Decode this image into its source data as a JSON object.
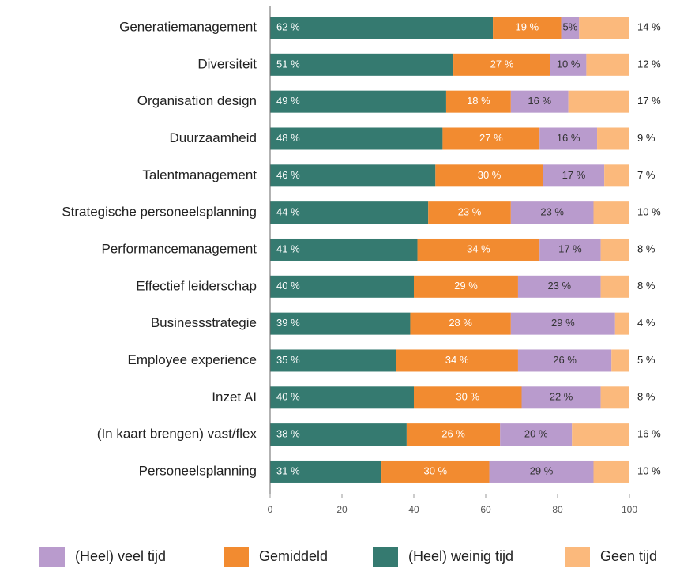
{
  "chart_data": {
    "type": "stacked-barh",
    "categories": [
      "Generatiemanagement",
      "Diversiteit",
      "Organisation design",
      "Duurzaamheid",
      "Talentmanagement",
      "Strategische personeelsplanning",
      "Performancemanagement",
      "Effectief leiderschap",
      "Businessstrategie",
      "Employee experience",
      "Inzet AI",
      "(In kaart brengen) vast/flex",
      "Personeelsplanning"
    ],
    "series": [
      {
        "name": "(Heel) weinig tijd",
        "color": "#357a70",
        "values": [
          62,
          51,
          49,
          48,
          46,
          44,
          41,
          40,
          39,
          35,
          40,
          38,
          31
        ],
        "value_labels": [
          "62 %",
          "51 %",
          "49 %",
          "48 %",
          "46 %",
          "44 %",
          "41 %",
          "40 %",
          "39 %",
          "35 %",
          "40 %",
          "38 %",
          "31 %"
        ]
      },
      {
        "name": "Gemiddeld",
        "color": "#f28b30",
        "values": [
          19,
          27,
          18,
          27,
          30,
          23,
          34,
          29,
          28,
          34,
          30,
          26,
          30
        ],
        "value_labels": [
          "19 %",
          "27 %",
          "18 %",
          "27 %",
          "30 %",
          "23 %",
          "34 %",
          "29 %",
          "28 %",
          "34 %",
          "30 %",
          "26 %",
          "30 %"
        ]
      },
      {
        "name": "(Heel) veel tijd",
        "color": "#b99bcd",
        "values": [
          5,
          10,
          16,
          16,
          17,
          23,
          17,
          23,
          29,
          26,
          22,
          20,
          29
        ],
        "value_labels": [
          "5%",
          "10 %",
          "16 %",
          "16 %",
          "17 %",
          "23 %",
          "17 %",
          "23 %",
          "29 %",
          "26 %",
          "22 %",
          "20 %",
          "29 %"
        ]
      },
      {
        "name": "Geen tijd",
        "color": "#fbb97c",
        "values": [
          14,
          12,
          17,
          9,
          7,
          10,
          8,
          8,
          4,
          5,
          8,
          16,
          10
        ],
        "value_labels": [
          "14 %",
          "12 %",
          "17 %",
          "9 %",
          "7 %",
          "10 %",
          "8 %",
          "8 %",
          "4 %",
          "5 %",
          "8 %",
          "16 %",
          "10 %"
        ]
      }
    ],
    "xlim": [
      0,
      100
    ],
    "xticks": [
      0,
      20,
      40,
      60,
      80,
      100
    ],
    "grid": false,
    "legend": "bottom"
  }
}
